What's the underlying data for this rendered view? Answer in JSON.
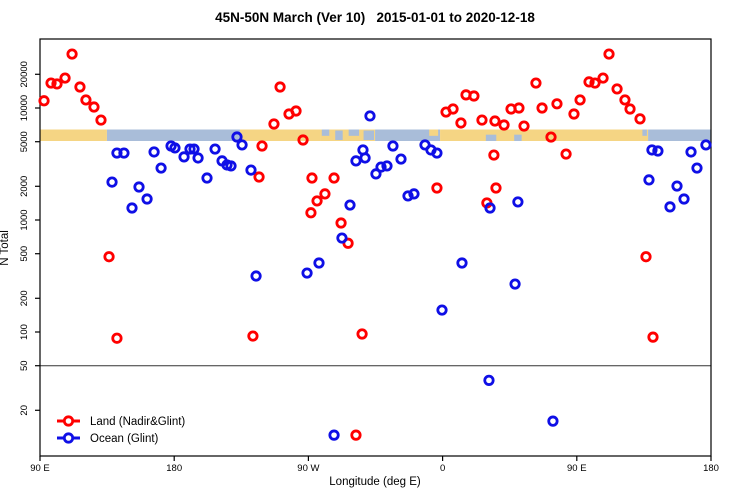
{
  "chart_data": {
    "type": "scatter",
    "title": "45N-50N March (Ver 10)   2015-01-01 to 2020-12-18",
    "xlabel": "Longitude (deg E)",
    "ylabel": "N Total",
    "x_axis": {
      "note": "axis runs eastward from 90E through the dateline, the Americas, Greenwich and back to 180; positions stored as degrees 90..540",
      "range_deg": [
        90,
        540
      ],
      "ticks": [
        {
          "v": 90,
          "label": "90 E"
        },
        {
          "v": 180,
          "label": "180"
        },
        {
          "v": 270,
          "label": "90 W"
        },
        {
          "v": 360,
          "label": "0"
        },
        {
          "v": 450,
          "label": "90 E"
        },
        {
          "v": 540,
          "label": "180"
        }
      ]
    },
    "y_axis": {
      "scale": "log",
      "range": [
        9,
        36000
      ],
      "ticks": [
        20000,
        10000,
        5000,
        2000,
        1000,
        500,
        200,
        100,
        50,
        20
      ]
    },
    "reference_line_n": 50,
    "legend": {
      "entries": [
        {
          "name": "land",
          "label": "Land (Nadir&Glint)",
          "color": "#FF0000"
        },
        {
          "name": "ocean",
          "label": "Ocean (Glint)",
          "color": "#0F0FE6"
        }
      ]
    },
    "map_strip": {
      "desc": "land/ocean band along 45N-50N drawn at N≈5100-6500",
      "land_color": "#F5D584",
      "ocean_color": "#A9BDD9",
      "segments": [
        {
          "from": 90,
          "to": 134.9,
          "type": "land"
        },
        {
          "from": 134.9,
          "to": 224.1,
          "type": "ocean"
        },
        {
          "from": 224.1,
          "to": 277.8,
          "type": "land"
        },
        {
          "from": 277.8,
          "to": 314.7,
          "type": "land"
        },
        {
          "from": 314.7,
          "to": 358.3,
          "type": "ocean"
        },
        {
          "from": 358.3,
          "to": 497.8,
          "type": "land"
        },
        {
          "from": 497.8,
          "to": 540,
          "type": "ocean"
        }
      ],
      "lakes": [
        {
          "from": 279,
          "to": 284,
          "part": "upper"
        },
        {
          "from": 288,
          "to": 293,
          "part": "full"
        },
        {
          "from": 297,
          "to": 304,
          "part": "upper"
        },
        {
          "from": 307,
          "to": 314,
          "part": "full"
        },
        {
          "from": 389,
          "to": 396,
          "part": "lower"
        },
        {
          "from": 408,
          "to": 413,
          "part": "lower"
        },
        {
          "from": 494,
          "to": 497,
          "part": "upper"
        }
      ],
      "islands": [
        {
          "from": 351,
          "to": 357,
          "part": "upper"
        }
      ]
    },
    "series": [
      {
        "name": "Land (Nadir&Glint)",
        "color": "#FF0000",
        "points": [
          [
            92.7,
            11600
          ],
          [
            97.4,
            16700
          ],
          [
            101.4,
            16400
          ],
          [
            106.8,
            18500
          ],
          [
            111.5,
            30300
          ],
          [
            116.8,
            15400
          ],
          [
            120.8,
            11800
          ],
          [
            126.2,
            10200
          ],
          [
            130.9,
            7800
          ],
          [
            136.3,
            470
          ],
          [
            141.6,
            88
          ],
          [
            232.8,
            92
          ],
          [
            236.9,
            2420
          ],
          [
            238.9,
            4580
          ],
          [
            246.9,
            7200
          ],
          [
            251.0,
            15400
          ],
          [
            257.0,
            8840
          ],
          [
            261.7,
            9400
          ],
          [
            266.4,
            5180
          ],
          [
            271.7,
            1160
          ],
          [
            272.4,
            2370
          ],
          [
            275.8,
            1480
          ],
          [
            281.1,
            1710
          ],
          [
            287.2,
            2370
          ],
          [
            291.9,
            940
          ],
          [
            296.6,
            620
          ],
          [
            301.9,
            12
          ],
          [
            306.0,
            96
          ],
          [
            356.2,
            1930
          ],
          [
            362.3,
            9200
          ],
          [
            367.0,
            9800
          ],
          [
            372.3,
            7350
          ],
          [
            375.7,
            13100
          ],
          [
            381.0,
            12800
          ],
          [
            386.4,
            7800
          ],
          [
            389.7,
            1420
          ],
          [
            394.4,
            3800
          ],
          [
            395.1,
            7650
          ],
          [
            395.8,
            1930
          ],
          [
            401.2,
            7050
          ],
          [
            405.9,
            9800
          ],
          [
            411.2,
            10000
          ],
          [
            414.6,
            6900
          ],
          [
            422.6,
            16700
          ],
          [
            426.7,
            10000
          ],
          [
            432.7,
            5500
          ],
          [
            436.7,
            10900
          ],
          [
            442.8,
            3880
          ],
          [
            448.1,
            8840
          ],
          [
            452.2,
            11800
          ],
          [
            458.2,
            17100
          ],
          [
            462.2,
            16700
          ],
          [
            467.6,
            18500
          ],
          [
            471.6,
            30300
          ],
          [
            477.0,
            14800
          ],
          [
            482.3,
            11800
          ],
          [
            485.7,
            9800
          ],
          [
            492.4,
            8000
          ],
          [
            496.4,
            470
          ],
          [
            501.1,
            90
          ]
        ]
      },
      {
        "name": "Ocean (Glint)",
        "color": "#0F0FE6",
        "points": [
          [
            138.3,
            2180
          ],
          [
            141.6,
            3960
          ],
          [
            146.3,
            3960
          ],
          [
            151.7,
            1280
          ],
          [
            156.4,
            1970
          ],
          [
            161.8,
            1540
          ],
          [
            166.5,
            4050
          ],
          [
            171.2,
            2910
          ],
          [
            177.9,
            4580
          ],
          [
            180.5,
            4400
          ],
          [
            186.6,
            3660
          ],
          [
            190.6,
            4300
          ],
          [
            193.3,
            4300
          ],
          [
            196.0,
            3580
          ],
          [
            202.0,
            2370
          ],
          [
            207.4,
            4300
          ],
          [
            212.1,
            3370
          ],
          [
            215.4,
            3100
          ],
          [
            218.1,
            3040
          ],
          [
            222.1,
            5510
          ],
          [
            225.5,
            4680
          ],
          [
            231.5,
            2790
          ],
          [
            234.9,
            316
          ],
          [
            269.1,
            336
          ],
          [
            277.1,
            413
          ],
          [
            287.2,
            12
          ],
          [
            292.5,
            690
          ],
          [
            297.9,
            1360
          ],
          [
            301.9,
            3370
          ],
          [
            306.6,
            4220
          ],
          [
            308.0,
            3580
          ],
          [
            311.3,
            8490
          ],
          [
            315.3,
            2580
          ],
          [
            318.7,
            2970
          ],
          [
            322.7,
            3040
          ],
          [
            326.7,
            4580
          ],
          [
            332.1,
            3500
          ],
          [
            336.8,
            1640
          ],
          [
            340.8,
            1710
          ],
          [
            348.2,
            4680
          ],
          [
            352.2,
            4220
          ],
          [
            356.2,
            3960
          ],
          [
            359.6,
            157
          ],
          [
            373.0,
            413
          ],
          [
            391.1,
            37
          ],
          [
            391.8,
            1280
          ],
          [
            408.6,
            268
          ],
          [
            410.5,
            1450
          ],
          [
            434.0,
            16
          ],
          [
            498.4,
            2280
          ],
          [
            500.4,
            4220
          ],
          [
            504.4,
            4130
          ],
          [
            512.5,
            1310
          ],
          [
            517.2,
            2010
          ],
          [
            521.9,
            1540
          ],
          [
            526.6,
            4050
          ],
          [
            530.6,
            2910
          ],
          [
            536.6,
            4680
          ]
        ]
      }
    ]
  }
}
